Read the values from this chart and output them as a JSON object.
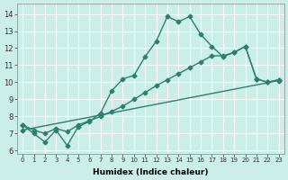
{
  "title": "",
  "xlabel": "Humidex (Indice chaleur)",
  "ylabel": "",
  "bg_color": "#cceee8",
  "grid_color": "#b8ddd8",
  "line_color": "#2d7f6e",
  "xlim": [
    -0.5,
    23.5
  ],
  "ylim": [
    5.8,
    14.6
  ],
  "yticks": [
    6,
    7,
    8,
    9,
    10,
    11,
    12,
    13,
    14
  ],
  "xticks": [
    0,
    1,
    2,
    3,
    4,
    5,
    6,
    7,
    8,
    9,
    10,
    11,
    12,
    13,
    14,
    15,
    16,
    17,
    18,
    19,
    20,
    21,
    22,
    23
  ],
  "series1_x": [
    0,
    1,
    2,
    3,
    4,
    5,
    6,
    7,
    8,
    9,
    10,
    11,
    12,
    13,
    14,
    15,
    16,
    17,
    18,
    19,
    20,
    21,
    22,
    23
  ],
  "series1_y": [
    7.5,
    7.0,
    6.5,
    7.2,
    6.3,
    7.4,
    7.7,
    8.2,
    9.5,
    10.2,
    10.4,
    11.5,
    12.4,
    13.85,
    13.55,
    13.85,
    12.8,
    12.1,
    11.5,
    11.75,
    12.1,
    10.2,
    10.0,
    10.15
  ],
  "series2_x": [
    0,
    1,
    2,
    3,
    4,
    5,
    6,
    7,
    8,
    9,
    10,
    11,
    12,
    13,
    14,
    15,
    16,
    17,
    18,
    19,
    20,
    21,
    22,
    23
  ],
  "series2_y": [
    7.5,
    7.2,
    7.0,
    7.3,
    7.1,
    7.5,
    7.75,
    8.0,
    8.3,
    8.6,
    9.0,
    9.4,
    9.8,
    10.15,
    10.5,
    10.85,
    11.2,
    11.55,
    11.55,
    11.75,
    12.1,
    10.2,
    10.0,
    10.15
  ],
  "series3_x": [
    0,
    23
  ],
  "series3_y": [
    7.2,
    10.1
  ],
  "marker": "D",
  "marker_size": 2.5,
  "line_width": 1.0
}
